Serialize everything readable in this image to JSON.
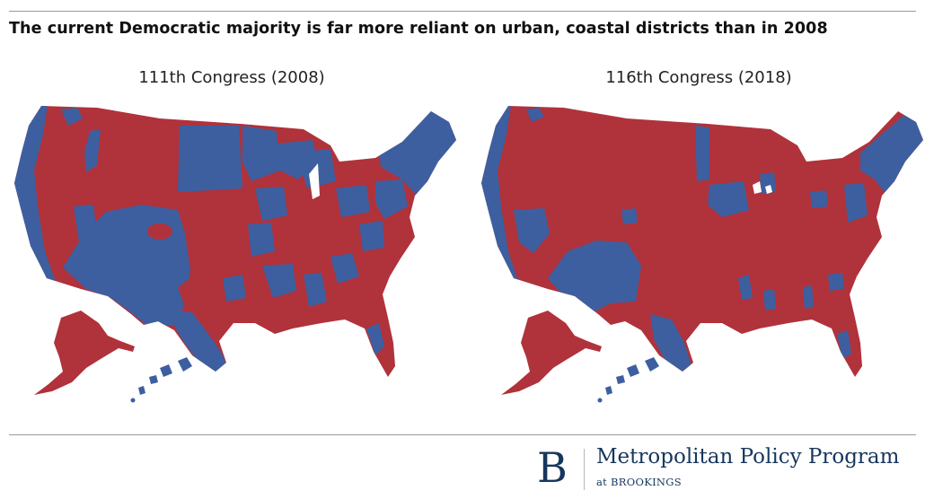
{
  "headline": "The current Democratic majority is far more reliant on urban, coastal districts than in 2008",
  "colors": {
    "democratic": "#3d5fa0",
    "republican": "#b0323b",
    "border": "#8f6a7a"
  },
  "maps": [
    {
      "title": "111th Congress (2008)"
    },
    {
      "title": "116th Congress (2018)"
    }
  ],
  "logo": {
    "mark": "B",
    "title": "Metropolitan Policy Program",
    "subtitle": "at BROOKINGS"
  }
}
